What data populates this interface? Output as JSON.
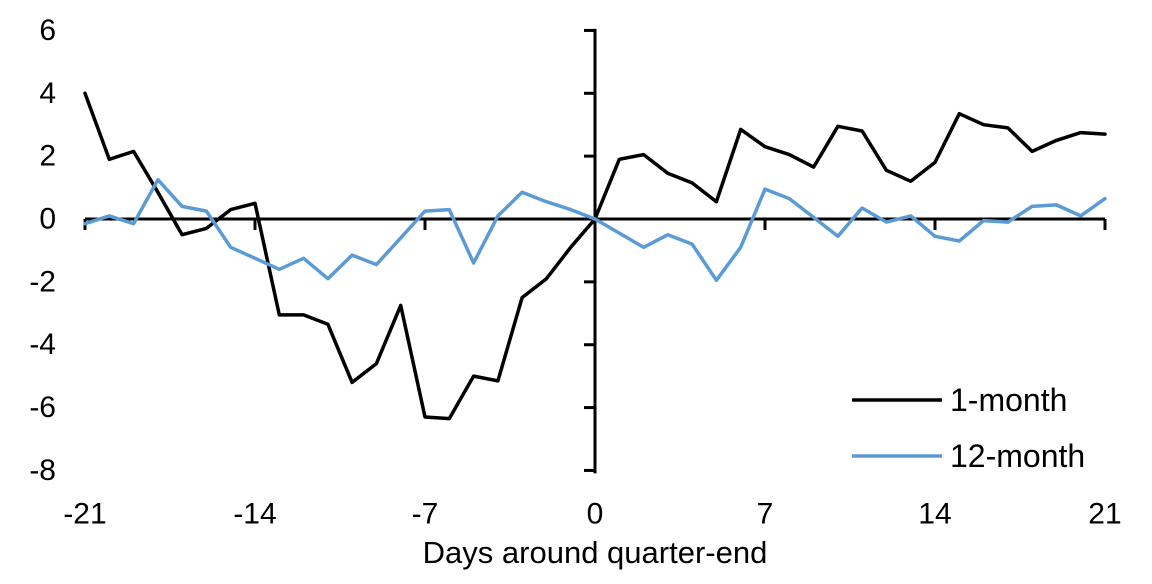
{
  "chart_data": {
    "type": "line",
    "title": "",
    "xlabel": "Days around quarter-end",
    "ylabel": "",
    "xlim": [
      -21,
      21
    ],
    "ylim": [
      -8,
      6
    ],
    "grid": false,
    "legend_position": "bottom-right",
    "x_ticks": [
      -21,
      -14,
      -7,
      0,
      7,
      14,
      21
    ],
    "y_ticks": [
      6,
      4,
      2,
      0,
      -2,
      -4,
      -6,
      -8
    ],
    "x": [
      -21,
      -20,
      -19,
      -18,
      -17,
      -16,
      -15,
      -14,
      -13,
      -12,
      -11,
      -10,
      -9,
      -8,
      -7,
      -6,
      -5,
      -4,
      -3,
      -2,
      -1,
      0,
      1,
      2,
      3,
      4,
      5,
      6,
      7,
      8,
      9,
      10,
      11,
      12,
      13,
      14,
      15,
      16,
      17,
      18,
      19,
      20,
      21
    ],
    "series": [
      {
        "name": "1-month",
        "color": "#000000",
        "values": [
          4.0,
          1.9,
          2.15,
          0.85,
          -0.5,
          -0.3,
          0.3,
          0.5,
          -3.05,
          -3.05,
          -3.35,
          -5.2,
          -4.6,
          -2.75,
          -6.3,
          -6.35,
          -5.0,
          -5.15,
          -2.5,
          -1.9,
          -0.9,
          0.0,
          1.9,
          2.05,
          1.45,
          1.15,
          0.55,
          2.85,
          2.3,
          2.05,
          1.65,
          2.95,
          2.8,
          1.55,
          1.2,
          1.8,
          3.35,
          3.0,
          2.9,
          2.15,
          2.5,
          2.75,
          2.7
        ]
      },
      {
        "name": "12-month",
        "color": "#5B9BD5",
        "values": [
          -0.15,
          0.1,
          -0.15,
          1.25,
          0.4,
          0.25,
          -0.9,
          -1.25,
          -1.6,
          -1.25,
          -1.9,
          -1.15,
          -1.45,
          -0.6,
          0.25,
          0.3,
          -1.4,
          0.1,
          0.85,
          0.55,
          0.3,
          0.0,
          -0.45,
          -0.9,
          -0.5,
          -0.8,
          -1.95,
          -0.9,
          0.95,
          0.65,
          0.05,
          -0.55,
          0.35,
          -0.1,
          0.1,
          -0.55,
          -0.7,
          -0.05,
          -0.1,
          0.4,
          0.45,
          0.1,
          0.65
        ]
      }
    ]
  },
  "axis_color": "#000000"
}
